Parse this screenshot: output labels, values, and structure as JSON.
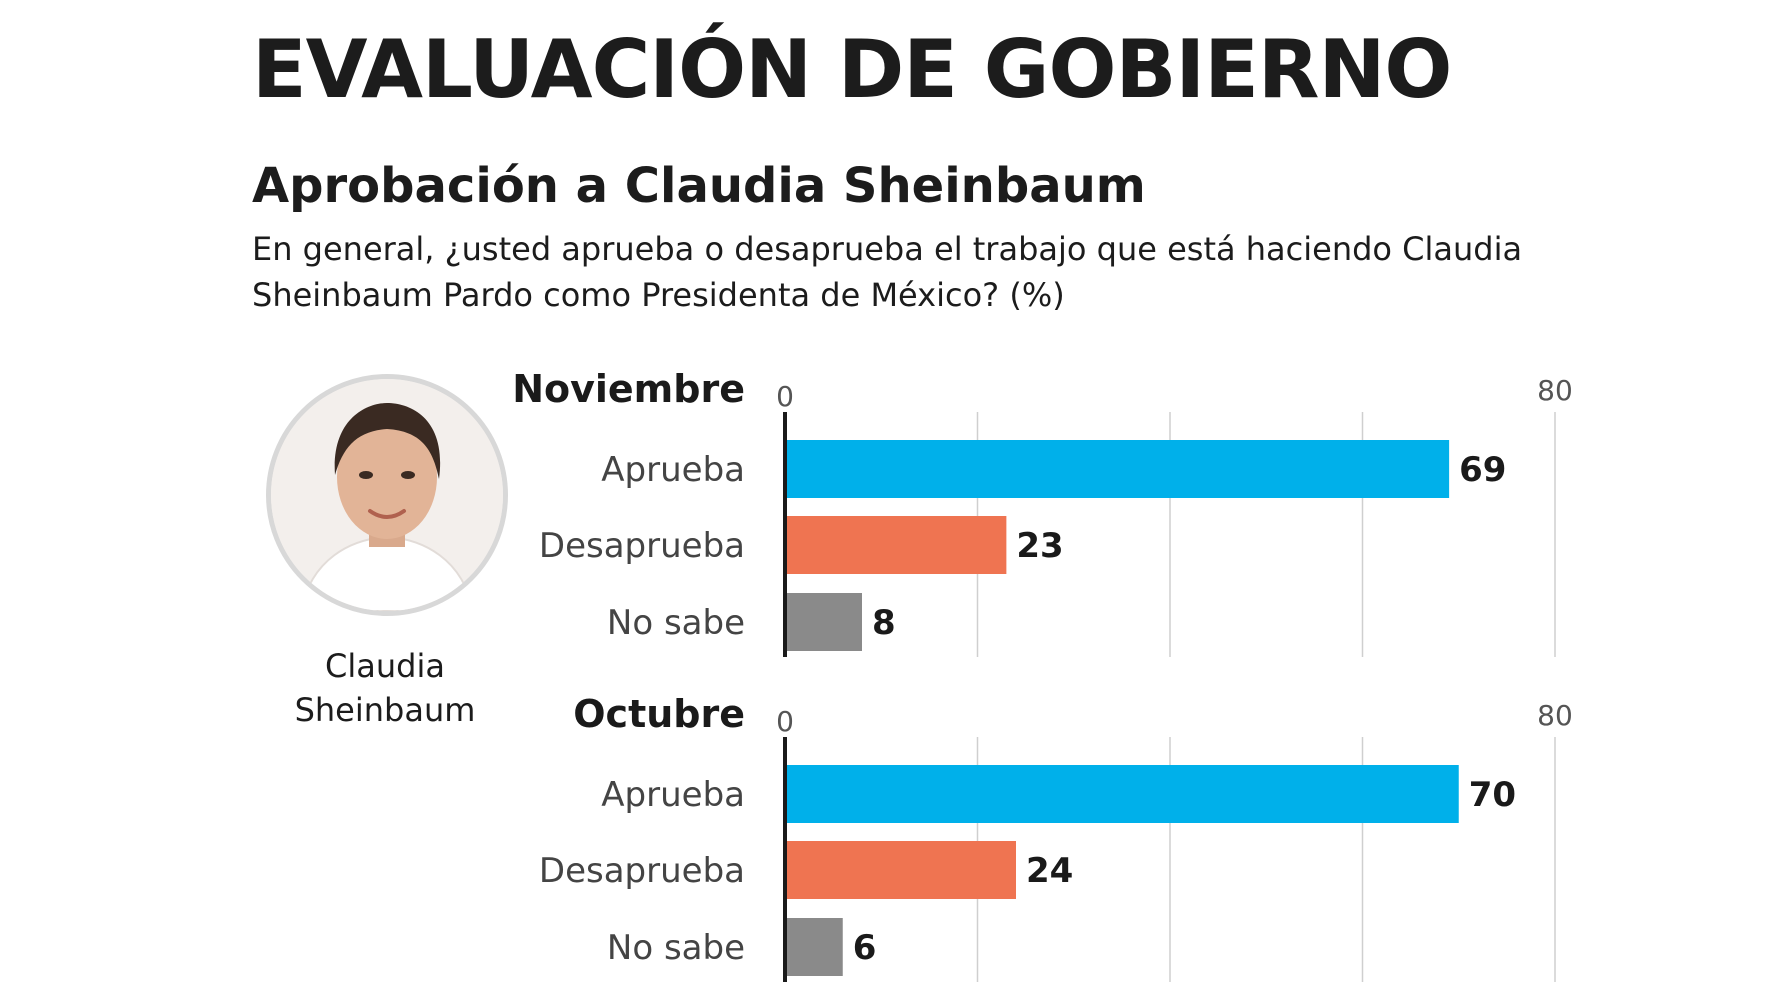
{
  "header": {
    "title": "EVALUACIÓN DE GOBIERNO",
    "subtitle": "Aprobación a Claudia Sheinbaum",
    "question": "En general, ¿usted aprueba o desaprueba el trabajo que está haciendo Claudia Sheinbaum Pardo como Presidenta de México? (%)"
  },
  "person": {
    "name": "Claudia Sheinbaum"
  },
  "colors": {
    "aprueba": "#00b0ea",
    "desaprueba": "#ef7451",
    "no_sabe": "#8a8a8a",
    "grid": "#cfcfcf",
    "axis": "#1a1a1a"
  },
  "chart_data": [
    {
      "type": "bar",
      "orientation": "horizontal",
      "panel_title": "Noviembre",
      "categories": [
        "Aprueba",
        "Desaprueba",
        "No sabe"
      ],
      "values": [
        69,
        23,
        8
      ],
      "xlim": [
        0,
        80
      ],
      "tick_labels": [
        "0",
        "80"
      ],
      "grid": true
    },
    {
      "type": "bar",
      "orientation": "horizontal",
      "panel_title": "Octubre",
      "categories": [
        "Aprueba",
        "Desaprueba",
        "No sabe"
      ],
      "values": [
        70,
        24,
        6
      ],
      "xlim": [
        0,
        80
      ],
      "tick_labels": [
        "0",
        "80"
      ],
      "grid": true
    }
  ]
}
